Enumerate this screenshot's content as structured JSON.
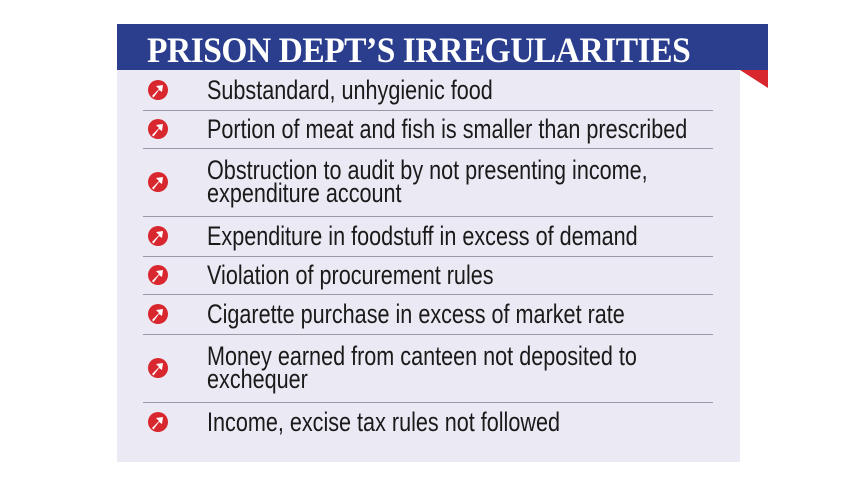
{
  "title": "PRISON DEPT’S IRREGULARITIES",
  "colors": {
    "header": "#2b3e8e",
    "accent": "#d8272e",
    "panel": "#ebeaf4"
  },
  "bullet_icon": "red-circle-arrow-up-right-icon",
  "items": [
    [
      "Substandard, unhygienic food"
    ],
    [
      "Portion of meat and fish is smaller than prescribed"
    ],
    [
      "Obstruction to audit by not presenting income,",
      "expenditure account"
    ],
    [
      "Expenditure in foodstuff in excess of demand"
    ],
    [
      "Violation of procurement rules"
    ],
    [
      "Cigarette purchase in excess of market rate"
    ],
    [
      "Money earned from canteen not deposited to",
      "exchequer"
    ],
    [
      "Income, excise tax rules not followed"
    ]
  ]
}
